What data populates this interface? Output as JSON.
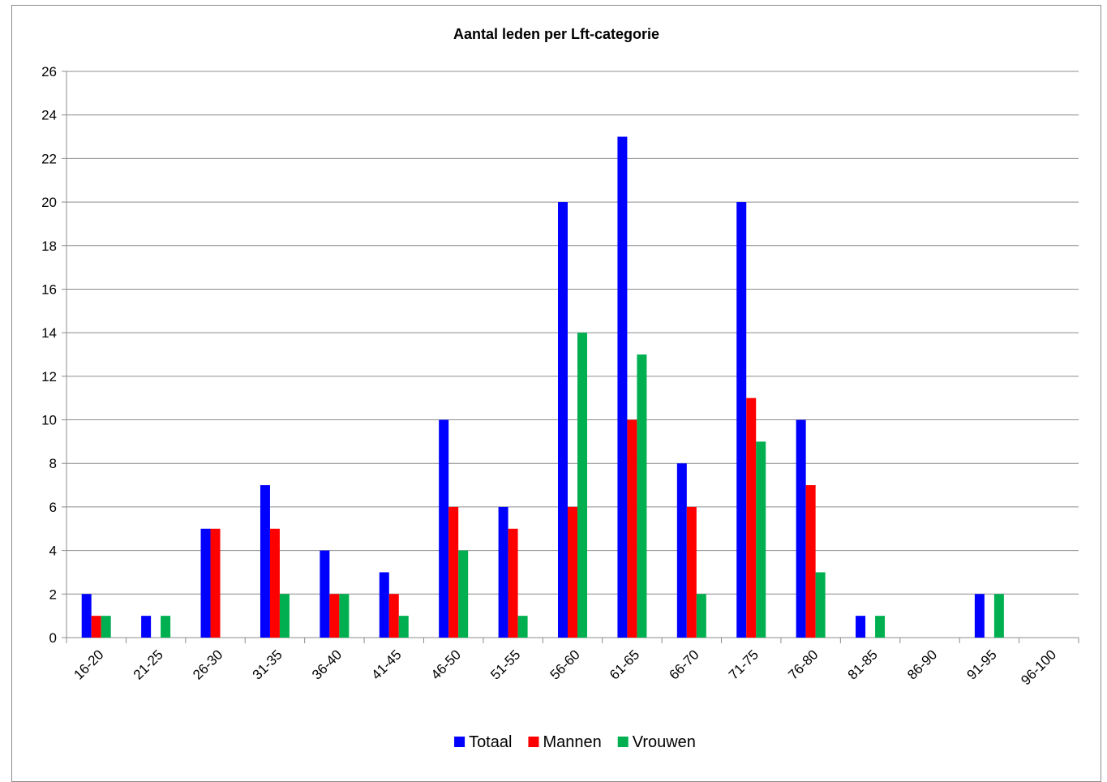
{
  "chart_data": {
    "type": "bar",
    "title": "Aantal leden per Lft-categorie",
    "xlabel": "",
    "ylabel": "",
    "ylim": [
      0,
      26
    ],
    "yticks": [
      0,
      2,
      4,
      6,
      8,
      10,
      12,
      14,
      16,
      18,
      20,
      22,
      24,
      26
    ],
    "grid": true,
    "legend_position": "bottom",
    "categories": [
      "16-20",
      "21-25",
      "26-30",
      "31-35",
      "36-40",
      "41-45",
      "46-50",
      "51-55",
      "56-60",
      "61-65",
      "66-70",
      "71-75",
      "76-80",
      "81-85",
      "86-90",
      "91-95",
      "96-100"
    ],
    "series": [
      {
        "name": "Totaal",
        "color": "#0000ff",
        "values": [
          2,
          1,
          5,
          7,
          4,
          3,
          10,
          6,
          20,
          23,
          8,
          20,
          10,
          1,
          0,
          2,
          0
        ]
      },
      {
        "name": "Mannen",
        "color": "#ff0000",
        "values": [
          1,
          0,
          5,
          5,
          2,
          2,
          6,
          5,
          6,
          10,
          6,
          11,
          7,
          0,
          0,
          0,
          0
        ]
      },
      {
        "name": "Vrouwen",
        "color": "#00b050",
        "values": [
          1,
          1,
          0,
          2,
          2,
          1,
          4,
          1,
          14,
          13,
          2,
          9,
          3,
          1,
          0,
          2,
          0
        ]
      }
    ]
  }
}
